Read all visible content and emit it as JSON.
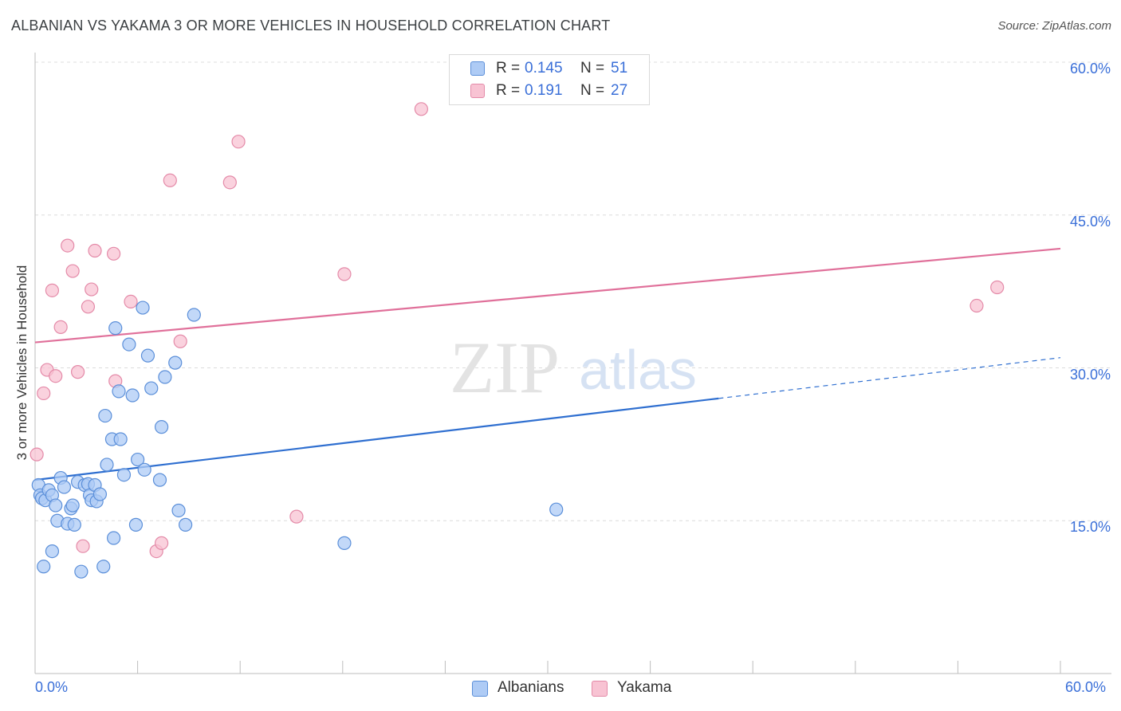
{
  "header": {
    "title": "ALBANIAN VS YAKAMA 3 OR MORE VEHICLES IN HOUSEHOLD CORRELATION CHART",
    "source": "Source: ZipAtlas.com"
  },
  "watermark": {
    "zip": "ZIP",
    "atlas": "atlas"
  },
  "legend_top": {
    "rows": [
      {
        "r_label": "R =",
        "r_value": "0.145",
        "n_label": "N =",
        "n_value": "51"
      },
      {
        "r_label": "R =",
        "r_value": "0.191",
        "n_label": "N =",
        "n_value": "27"
      }
    ]
  },
  "legend_bottom": {
    "items": [
      {
        "label": "Albanians"
      },
      {
        "label": "Yakama"
      }
    ]
  },
  "colors": {
    "albanians_fill": "#aecbf5",
    "albanians_stroke": "#5b8fd9",
    "albanians_line": "#2f6fd0",
    "yakama_fill": "#f8c3d3",
    "yakama_stroke": "#e48aa8",
    "yakama_line": "#e0709a",
    "tick_text": "#3a6fd8"
  },
  "chart_data": {
    "type": "scatter",
    "title": "ALBANIAN VS YAKAMA 3 OR MORE VEHICLES IN HOUSEHOLD CORRELATION CHART",
    "xlabel": "",
    "ylabel": "3 or more Vehicles in Household",
    "xlim": [
      0,
      60
    ],
    "ylim": [
      0,
      60
    ],
    "x_tick_labels": [
      "0.0%",
      "60.0%"
    ],
    "y_ticks": [
      15,
      30,
      45,
      60
    ],
    "y_tick_labels": [
      "15.0%",
      "30.0%",
      "45.0%",
      "60.0%"
    ],
    "grid": true,
    "legend": "top-center",
    "series": [
      {
        "name": "Albanians",
        "R": 0.145,
        "N": 51,
        "trend": {
          "x0": 0,
          "y0": 19.0,
          "x1": 40.0,
          "y1": 27.0,
          "dash_to_x": 60,
          "dash_to_y": 31.0
        },
        "points": [
          [
            0.2,
            18.5
          ],
          [
            0.3,
            17.5
          ],
          [
            0.4,
            17.2
          ],
          [
            0.5,
            10.5
          ],
          [
            0.6,
            17.0
          ],
          [
            0.8,
            18.0
          ],
          [
            1.0,
            17.5
          ],
          [
            1.0,
            12.0
          ],
          [
            1.2,
            16.5
          ],
          [
            1.3,
            15.0
          ],
          [
            1.5,
            19.2
          ],
          [
            1.7,
            18.3
          ],
          [
            1.9,
            14.7
          ],
          [
            2.1,
            16.2
          ],
          [
            2.2,
            16.5
          ],
          [
            2.3,
            14.6
          ],
          [
            2.5,
            18.8
          ],
          [
            2.7,
            10.0
          ],
          [
            2.9,
            18.5
          ],
          [
            3.1,
            18.6
          ],
          [
            3.2,
            17.5
          ],
          [
            3.3,
            17.0
          ],
          [
            3.5,
            18.5
          ],
          [
            3.6,
            16.9
          ],
          [
            3.8,
            17.6
          ],
          [
            4.0,
            10.5
          ],
          [
            4.1,
            25.3
          ],
          [
            4.2,
            20.5
          ],
          [
            4.5,
            23.0
          ],
          [
            4.6,
            13.3
          ],
          [
            4.7,
            33.9
          ],
          [
            4.9,
            27.7
          ],
          [
            5.0,
            23.0
          ],
          [
            5.2,
            19.5
          ],
          [
            5.5,
            32.3
          ],
          [
            5.7,
            27.3
          ],
          [
            5.9,
            14.6
          ],
          [
            6.0,
            21.0
          ],
          [
            6.3,
            35.9
          ],
          [
            6.4,
            20.0
          ],
          [
            6.6,
            31.2
          ],
          [
            6.8,
            28.0
          ],
          [
            7.3,
            19.0
          ],
          [
            7.4,
            24.2
          ],
          [
            7.6,
            29.1
          ],
          [
            8.2,
            30.5
          ],
          [
            8.4,
            16.0
          ],
          [
            8.8,
            14.6
          ],
          [
            9.3,
            35.2
          ],
          [
            18.1,
            12.8
          ],
          [
            30.5,
            16.1
          ]
        ]
      },
      {
        "name": "Yakama",
        "R": 0.191,
        "N": 27,
        "trend": {
          "x0": 0,
          "y0": 32.5,
          "x1": 60,
          "y1": 41.7
        },
        "points": [
          [
            0.1,
            21.5
          ],
          [
            0.5,
            27.5
          ],
          [
            0.7,
            29.8
          ],
          [
            1.0,
            37.6
          ],
          [
            1.2,
            29.2
          ],
          [
            1.5,
            34.0
          ],
          [
            1.9,
            42.0
          ],
          [
            2.2,
            39.5
          ],
          [
            2.5,
            29.6
          ],
          [
            2.8,
            12.5
          ],
          [
            3.1,
            36.0
          ],
          [
            3.3,
            37.7
          ],
          [
            3.5,
            41.5
          ],
          [
            4.6,
            41.2
          ],
          [
            4.7,
            28.7
          ],
          [
            5.6,
            36.5
          ],
          [
            7.1,
            12.0
          ],
          [
            7.4,
            12.8
          ],
          [
            7.9,
            48.4
          ],
          [
            8.5,
            32.6
          ],
          [
            11.4,
            48.2
          ],
          [
            11.9,
            52.2
          ],
          [
            15.3,
            15.4
          ],
          [
            18.1,
            39.2
          ],
          [
            22.6,
            55.4
          ],
          [
            55.1,
            36.1
          ],
          [
            56.3,
            37.9
          ]
        ]
      }
    ]
  }
}
